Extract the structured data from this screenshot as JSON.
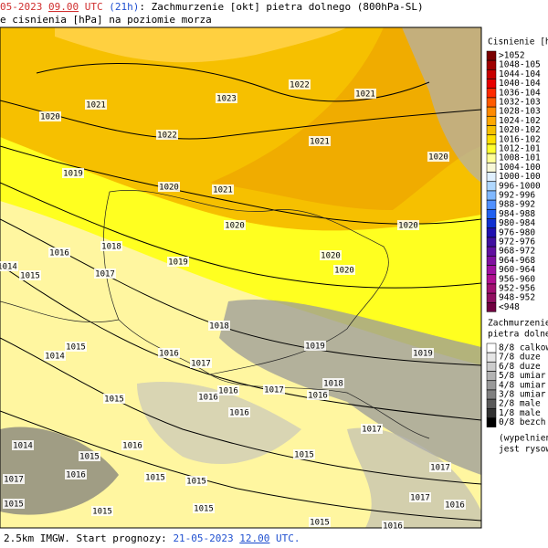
{
  "header": {
    "line1": [
      {
        "text": "05-2023 ",
        "color": "#d03030"
      },
      {
        "text": "09.00",
        "color": "#d03030",
        "underline": true
      },
      {
        "text": " UTC ",
        "color": "#d03030"
      },
      {
        "text": "(21h)",
        "color": "#2050d0"
      },
      {
        "text": ": Zachmurzenie [okt] pietra dolnego (800hPa-SL)",
        "color": "#000000"
      }
    ],
    "line2": "e cisnienia [hPa] na poziomie morza"
  },
  "isobar_labels": [
    "1020",
    "1021",
    "1023",
    "1022",
    "1021",
    "1022",
    "1021",
    "1020",
    "1019",
    "1020",
    "1021",
    "1020",
    "1020",
    "1018",
    "1016",
    "1020",
    "1020",
    "1014",
    "1015",
    "1017",
    "1019",
    "1018",
    "1019",
    "1019",
    "1014",
    "1015",
    "1016",
    "1017",
    "1018",
    "1016",
    "1016",
    "1017",
    "1016",
    "1016",
    "1015",
    "1017",
    "1014",
    "1015",
    "1016",
    "1015",
    "1017",
    "1017",
    "1016",
    "1015",
    "1015",
    "1017",
    "1015",
    "1015",
    "1015",
    "1016",
    "1015",
    "1016"
  ],
  "pressure_legend": {
    "title": "Cisnienie [hP",
    "items": [
      {
        "label": ">1052",
        "color": "#7a0000"
      },
      {
        "label": "1048-105",
        "color": "#a00000"
      },
      {
        "label": "1044-104",
        "color": "#c80000"
      },
      {
        "label": "1040-104",
        "color": "#e80000"
      },
      {
        "label": "1036-104",
        "color": "#ff2a00"
      },
      {
        "label": "1032-103",
        "color": "#ff5a00"
      },
      {
        "label": "1028-103",
        "color": "#ff8a00"
      },
      {
        "label": "1024-102",
        "color": "#ffa800"
      },
      {
        "label": "1020-102",
        "color": "#f6c000"
      },
      {
        "label": "1016-102",
        "color": "#ffe000"
      },
      {
        "label": "1012-101",
        "color": "#ffff30"
      },
      {
        "label": "1008-101",
        "color": "#ffff99"
      },
      {
        "label": "1004-100",
        "color": "#f8f8d8"
      },
      {
        "label": "1000-100",
        "color": "#e0f0ff"
      },
      {
        "label": "996-1000",
        "color": "#b0d8ff"
      },
      {
        "label": "992-996",
        "color": "#80b8ff"
      },
      {
        "label": "988-992",
        "color": "#5090ff"
      },
      {
        "label": "984-988",
        "color": "#2060f0"
      },
      {
        "label": "980-984",
        "color": "#1030d0"
      },
      {
        "label": "976-980",
        "color": "#2010b0"
      },
      {
        "label": "972-976",
        "color": "#4010a0"
      },
      {
        "label": "968-972",
        "color": "#6010a0"
      },
      {
        "label": "964-968",
        "color": "#8010a0"
      },
      {
        "label": "960-964",
        "color": "#a010a0"
      },
      {
        "label": "956-960",
        "color": "#b01090"
      },
      {
        "label": "952-956",
        "color": "#a01070"
      },
      {
        "label": "948-952",
        "color": "#901060"
      },
      {
        "label": "<948",
        "color": "#700040"
      }
    ]
  },
  "cloud_legend": {
    "title": [
      "Zachmurzenie",
      "pietra dolneg"
    ],
    "items": [
      {
        "label": "8/8 calkow",
        "color": "#ffffff"
      },
      {
        "label": "7/8 duze",
        "color": "#e6e6e6"
      },
      {
        "label": "6/8 duze",
        "color": "#cccccc"
      },
      {
        "label": "5/8 umiar",
        "color": "#b3b3b3"
      },
      {
        "label": "4/8 umiar",
        "color": "#999999"
      },
      {
        "label": "3/8 umiar",
        "color": "#808080"
      },
      {
        "label": "2/8 male",
        "color": "#5a5a5a"
      },
      {
        "label": "1/8 male",
        "color": "#333333"
      },
      {
        "label": "0/8 bezch",
        "color": "#000000"
      }
    ],
    "note": [
      "(wypelnien",
      "jest rysowa"
    ]
  },
  "footer": [
    {
      "text": "2.5km IMGW. Start prognozy: ",
      "color": "#000000"
    },
    {
      "text": "21-05-2023 ",
      "color": "#2050d0"
    },
    {
      "text": "12.00",
      "color": "#2050d0",
      "underline": true
    },
    {
      "text": " UTC.",
      "color": "#2050d0"
    }
  ]
}
